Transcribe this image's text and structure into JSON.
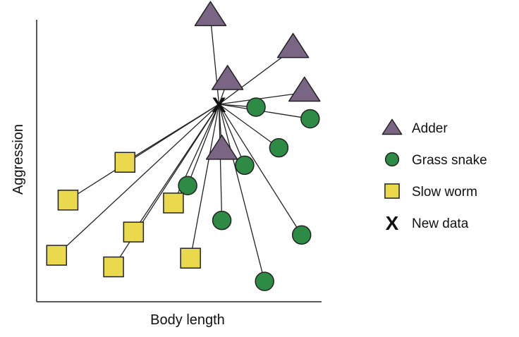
{
  "chart_data": {
    "type": "scatter",
    "title": "",
    "xlabel": "Body length",
    "ylabel": "Aggression",
    "xlim": [
      0,
      100
    ],
    "ylim": [
      0,
      100
    ],
    "grid": false,
    "legend_position": "right",
    "new_point": {
      "name": "New data",
      "x": 64,
      "y": 68,
      "symbol": "X"
    },
    "series": [
      {
        "name": "Adder",
        "marker": "triangle",
        "color": "#7a6585",
        "points": [
          {
            "x": 61,
            "y": 98
          },
          {
            "x": 90,
            "y": 87
          },
          {
            "x": 67,
            "y": 76
          },
          {
            "x": 94,
            "y": 72
          },
          {
            "x": 65,
            "y": 52
          }
        ]
      },
      {
        "name": "Grass snake",
        "marker": "circle",
        "color": "#2e8b46",
        "points": [
          {
            "x": 77,
            "y": 67
          },
          {
            "x": 96,
            "y": 63
          },
          {
            "x": 85,
            "y": 53
          },
          {
            "x": 73,
            "y": 47
          },
          {
            "x": 53,
            "y": 40
          },
          {
            "x": 65,
            "y": 28
          },
          {
            "x": 93,
            "y": 23
          },
          {
            "x": 80,
            "y": 7
          }
        ]
      },
      {
        "name": "Slow worm",
        "marker": "square",
        "color": "#ead94c",
        "points": [
          {
            "x": 31,
            "y": 48
          },
          {
            "x": 11,
            "y": 35
          },
          {
            "x": 48,
            "y": 34
          },
          {
            "x": 34,
            "y": 24
          },
          {
            "x": 7,
            "y": 16
          },
          {
            "x": 27,
            "y": 12
          },
          {
            "x": 54,
            "y": 15
          }
        ]
      }
    ]
  },
  "legend": [
    {
      "label": "Adder",
      "icon": "triangle-icon"
    },
    {
      "label": "Grass snake",
      "icon": "circle-icon"
    },
    {
      "label": "Slow worm",
      "icon": "square-icon"
    },
    {
      "label": "New data",
      "icon": "x-icon"
    }
  ]
}
